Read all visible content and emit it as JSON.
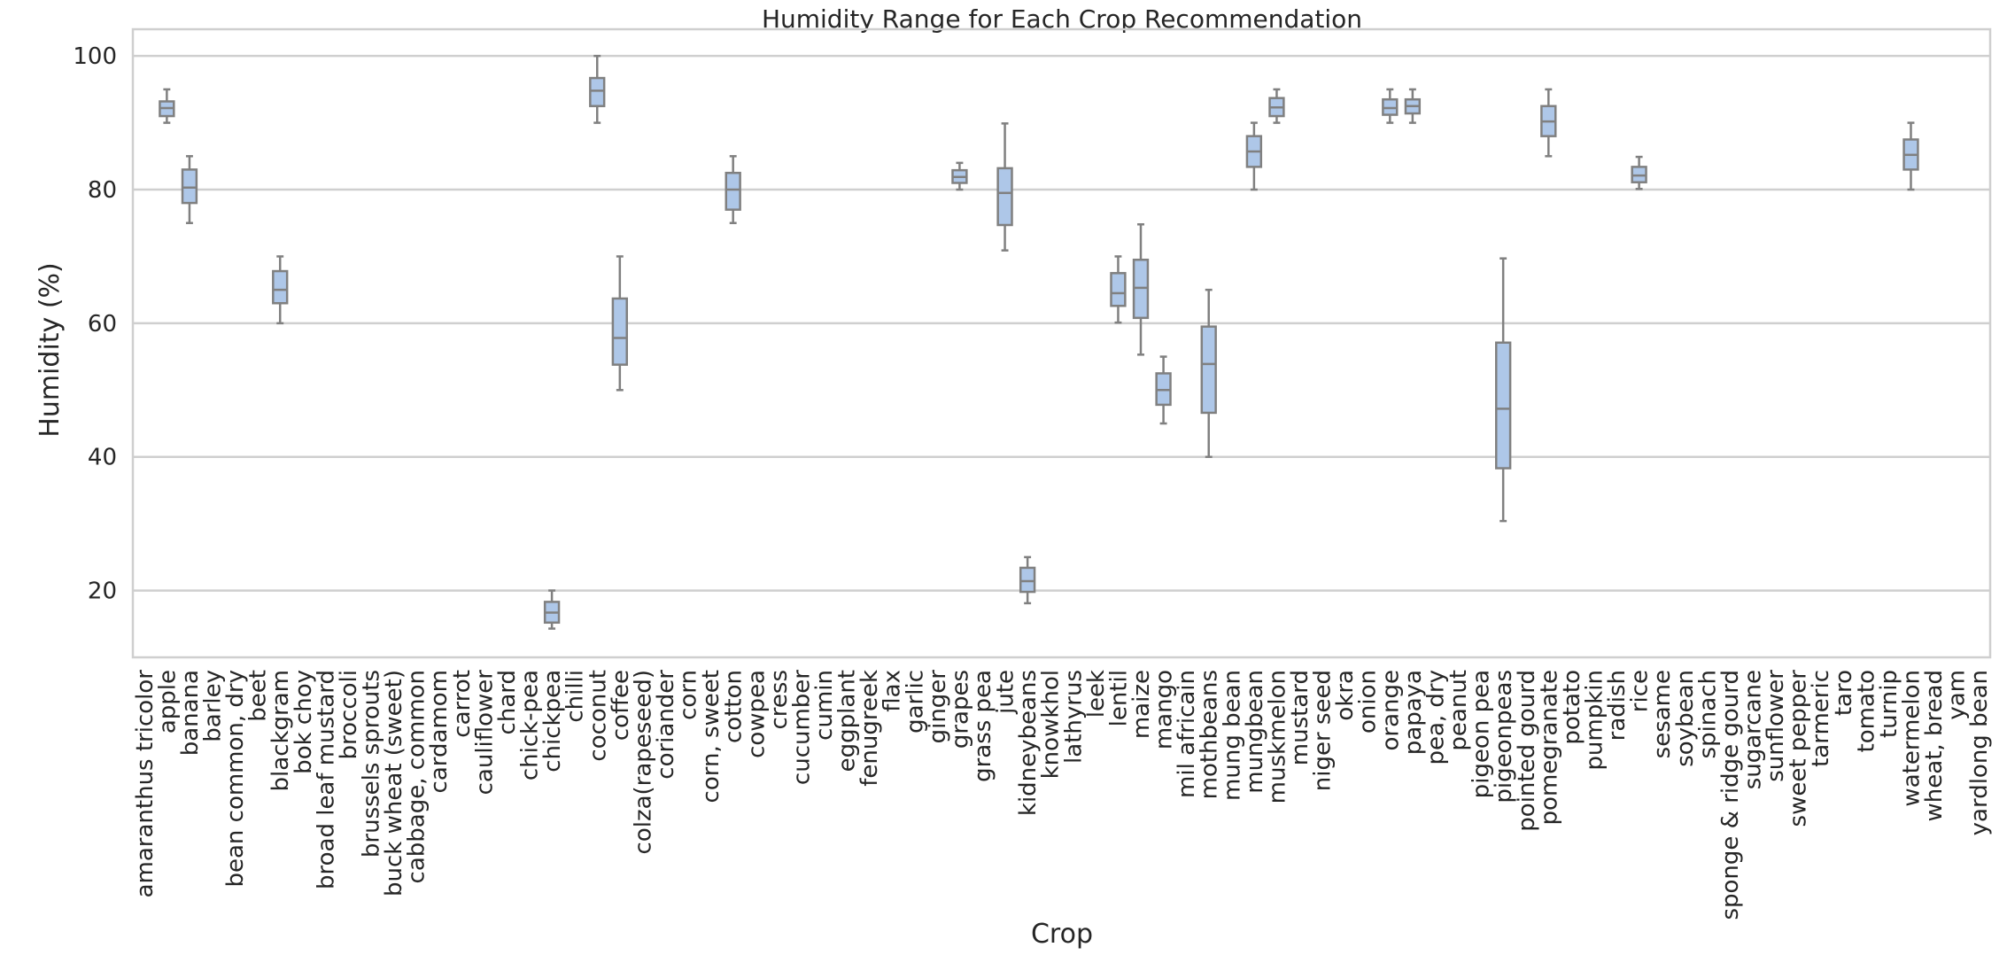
{
  "chart_data": {
    "type": "box",
    "title": "Humidity Range for Each Crop Recommendation",
    "xlabel": "Crop",
    "ylabel": "Humidity (%)",
    "ylim": [
      10,
      104
    ],
    "yticks": [
      20,
      40,
      60,
      80,
      100
    ],
    "grid": "horizontal",
    "categories": [
      "amaranthus tricolor",
      "apple",
      "banana",
      "barley",
      "bean common, dry",
      "beet",
      "blackgram",
      "bok choy",
      "broad leaf mustard",
      "broccoli",
      "brussels sprouts",
      "buck wheat (sweet)",
      "cabbage, common",
      "cardamom",
      "carrot",
      "cauliflower",
      "chard",
      "chick-pea",
      "chickpea",
      "chilli",
      "coconut",
      "coffee",
      "colza(rapeseed)",
      "coriander",
      "corn",
      "corn, sweet",
      "cotton",
      "cowpea",
      "cress",
      "cucumber",
      "cumin",
      "eggplant",
      "fenugreek",
      "flax",
      "garlic",
      "ginger",
      "grapes",
      "grass pea",
      "jute",
      "kidneybeans",
      "knowkhol",
      "lathyrus",
      "leek",
      "lentil",
      "maize",
      "mango",
      "mil africain",
      "mothbeans",
      "mung bean",
      "mungbean",
      "muskmelon",
      "mustard",
      "niger seed",
      "okra",
      "onion",
      "orange",
      "papaya",
      "pea, dry",
      "peanut",
      "pigeon pea",
      "pigeonpeas",
      "pointed gourd",
      "pomegranate",
      "potato",
      "pumpkin",
      "radish",
      "rice",
      "sesame",
      "soybean",
      "spinach",
      "sponge & ridge gourd",
      "sugarcane",
      "sunflower",
      "sweet pepper",
      "tarmeric",
      "taro",
      "tomato",
      "turnip",
      "watermelon",
      "wheat, bread",
      "yam",
      "yardlong bean"
    ],
    "boxes": [
      {
        "category": "apple",
        "min": 90.0,
        "q1": 91.0,
        "median": 92.2,
        "q3": 93.2,
        "max": 95.0
      },
      {
        "category": "banana",
        "min": 75.0,
        "q1": 78.0,
        "median": 80.3,
        "q3": 83.0,
        "max": 85.0
      },
      {
        "category": "blackgram",
        "min": 60.0,
        "q1": 63.0,
        "median": 65.0,
        "q3": 67.8,
        "max": 70.0
      },
      {
        "category": "chickpea",
        "min": 14.3,
        "q1": 15.2,
        "median": 16.7,
        "q3": 18.3,
        "max": 20.0
      },
      {
        "category": "coconut",
        "min": 90.0,
        "q1": 92.5,
        "median": 94.8,
        "q3": 96.7,
        "max": 100.0
      },
      {
        "category": "coffee",
        "min": 50.0,
        "q1": 53.8,
        "median": 57.8,
        "q3": 63.7,
        "max": 70.0
      },
      {
        "category": "cotton",
        "min": 75.0,
        "q1": 77.0,
        "median": 80.0,
        "q3": 82.5,
        "max": 85.0
      },
      {
        "category": "grapes",
        "min": 80.0,
        "q1": 81.0,
        "median": 81.9,
        "q3": 82.9,
        "max": 84.0
      },
      {
        "category": "jute",
        "min": 70.9,
        "q1": 74.7,
        "median": 79.5,
        "q3": 83.2,
        "max": 89.9
      },
      {
        "category": "kidneybeans",
        "min": 18.1,
        "q1": 19.8,
        "median": 21.4,
        "q3": 23.4,
        "max": 25.0
      },
      {
        "category": "lentil",
        "min": 60.1,
        "q1": 62.6,
        "median": 64.5,
        "q3": 67.5,
        "max": 70.0
      },
      {
        "category": "maize",
        "min": 55.3,
        "q1": 60.8,
        "median": 65.3,
        "q3": 69.5,
        "max": 74.8
      },
      {
        "category": "mango",
        "min": 45.0,
        "q1": 47.8,
        "median": 50.0,
        "q3": 52.5,
        "max": 55.0
      },
      {
        "category": "mothbeans",
        "min": 40.0,
        "q1": 46.6,
        "median": 53.9,
        "q3": 59.5,
        "max": 65.0
      },
      {
        "category": "mungbean",
        "min": 80.0,
        "q1": 83.4,
        "median": 85.7,
        "q3": 88.0,
        "max": 90.0
      },
      {
        "category": "muskmelon",
        "min": 90.0,
        "q1": 91.0,
        "median": 92.3,
        "q3": 93.7,
        "max": 95.0
      },
      {
        "category": "orange",
        "min": 90.0,
        "q1": 91.2,
        "median": 92.2,
        "q3": 93.5,
        "max": 95.0
      },
      {
        "category": "papaya",
        "min": 90.0,
        "q1": 91.4,
        "median": 92.5,
        "q3": 93.5,
        "max": 95.0
      },
      {
        "category": "pigeonpeas",
        "min": 30.4,
        "q1": 38.3,
        "median": 47.2,
        "q3": 57.1,
        "max": 69.7
      },
      {
        "category": "pomegranate",
        "min": 85.0,
        "q1": 88.0,
        "median": 90.2,
        "q3": 92.5,
        "max": 95.0
      },
      {
        "category": "rice",
        "min": 80.1,
        "q1": 81.1,
        "median": 82.1,
        "q3": 83.4,
        "max": 84.9
      },
      {
        "category": "watermelon",
        "min": 80.0,
        "q1": 83.0,
        "median": 85.2,
        "q3": 87.5,
        "max": 90.0
      }
    ]
  },
  "colors": {
    "box_fill": "#aec7e8",
    "box_edge": "#808080",
    "grid": "#cfcfcf"
  }
}
